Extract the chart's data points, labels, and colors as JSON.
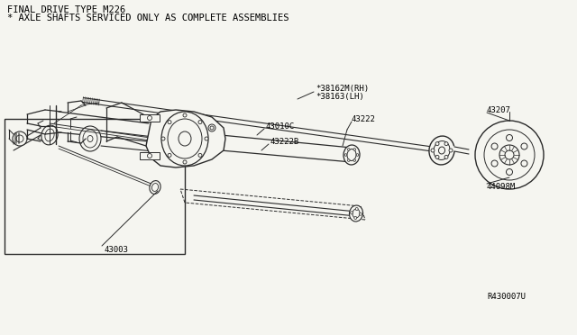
{
  "title_line1": "FINAL DRIVE TYPE M226",
  "title_line2": "* AXLE SHAFTS SERVICED ONLY AS COMPLETE ASSEMBLIES",
  "bg_color": "#f5f5f0",
  "line_color": "#2a2a2a",
  "ref_number": "R430007U",
  "labels": {
    "38162M_RH": "*38162M(RH)",
    "38163_LH": "*38163(LH)",
    "43222": "43222",
    "43010C": "43010C",
    "43222B": "43222B",
    "43003": "43003",
    "43207": "43207",
    "44098M": "44098M"
  },
  "font_size_title": 7.5,
  "font_size_label": 6.5
}
